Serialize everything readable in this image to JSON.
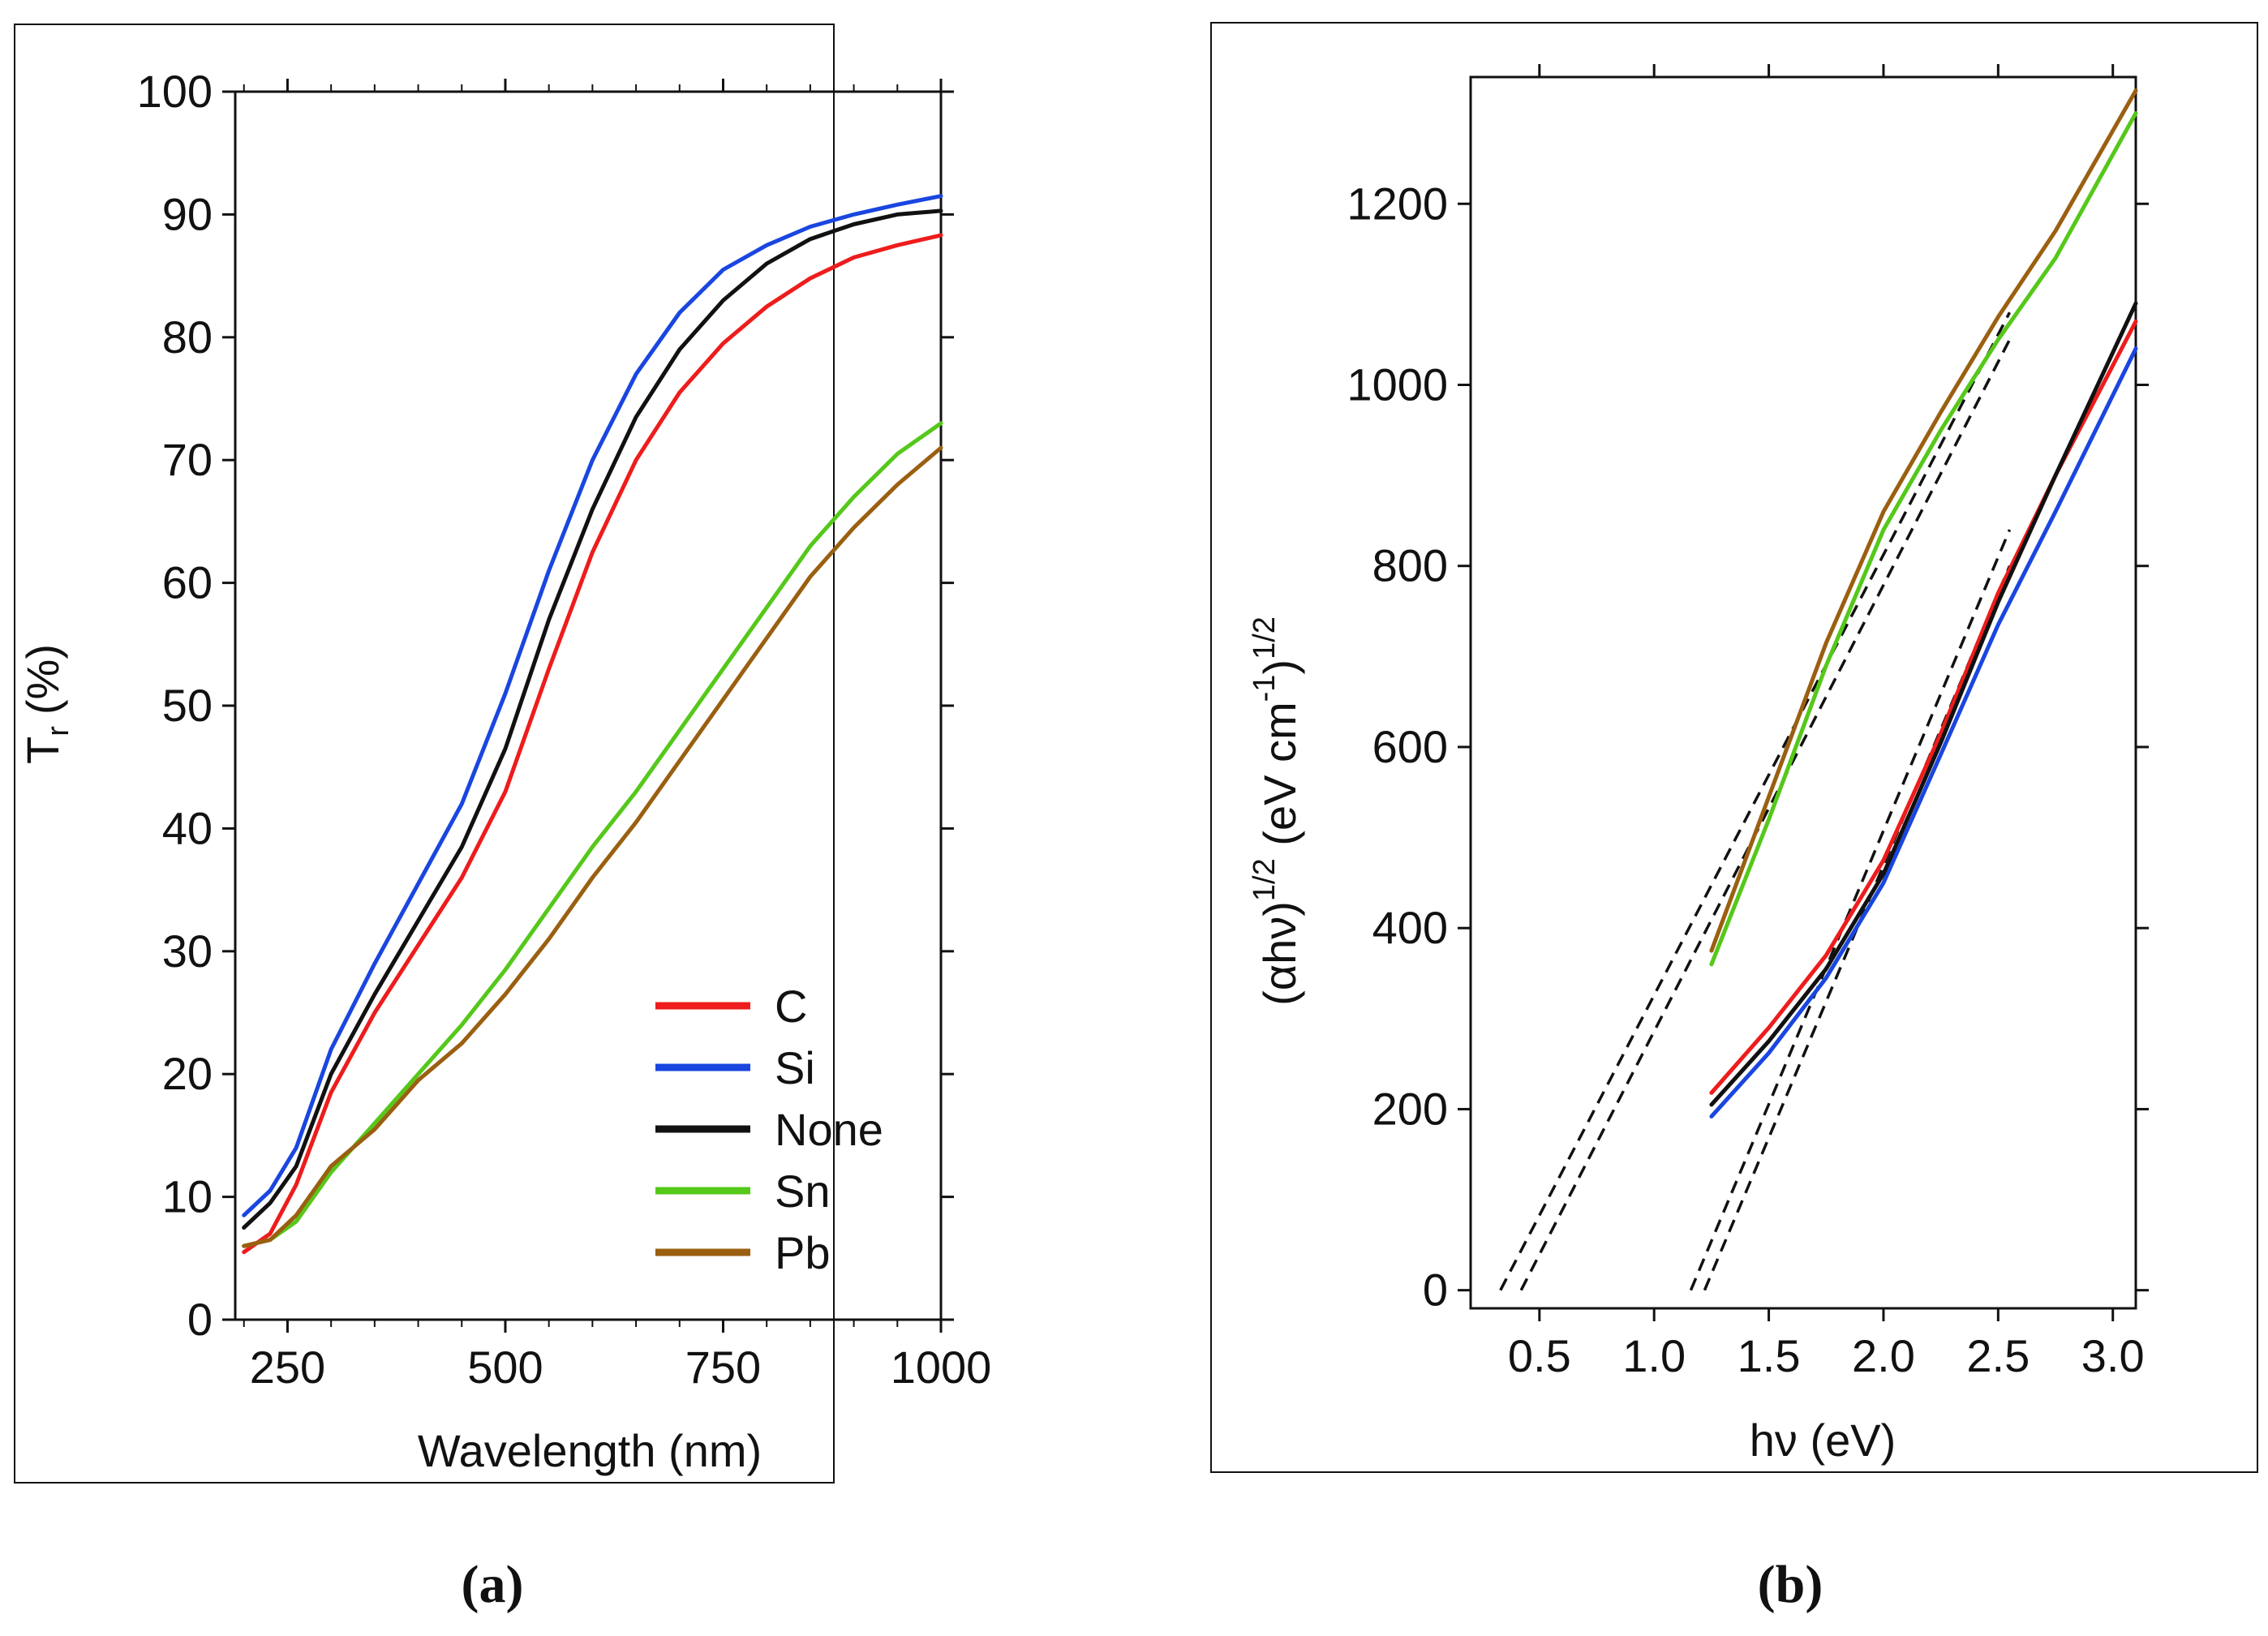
{
  "panels": [
    {
      "label": "(a)"
    },
    {
      "label": "(b)"
    }
  ],
  "chart_data": [
    {
      "type": "line",
      "xlabel": "Wavelength (nm)",
      "ylabel_main": "T",
      "ylabel_sub": "r",
      "ylabel_unit": "(%)",
      "xlim": [
        190,
        1000
      ],
      "ylim": [
        0,
        100
      ],
      "xticks": [
        250,
        500,
        750,
        1000
      ],
      "yticks": [
        0,
        10,
        20,
        30,
        40,
        50,
        60,
        70,
        80,
        90,
        100
      ],
      "grid": false,
      "legend_position": "bottom-right",
      "series": [
        {
          "name": "C",
          "color": "#ee1c1c",
          "x": [
            200,
            230,
            260,
            300,
            350,
            400,
            450,
            500,
            550,
            600,
            650,
            700,
            750,
            800,
            850,
            900,
            950,
            1000
          ],
          "y": [
            5.5,
            7,
            11,
            18.5,
            25,
            30.5,
            36,
            43,
            53,
            62.5,
            70,
            75.5,
            79.5,
            82.5,
            84.8,
            86.5,
            87.5,
            88.3
          ]
        },
        {
          "name": "Si",
          "color": "#1a46e0",
          "x": [
            200,
            230,
            260,
            300,
            350,
            400,
            450,
            500,
            550,
            600,
            650,
            700,
            750,
            800,
            850,
            900,
            950,
            1000
          ],
          "y": [
            8.5,
            10.5,
            14,
            22,
            29,
            35.5,
            42,
            51,
            61,
            70,
            77,
            82,
            85.5,
            87.5,
            89,
            90,
            90.8,
            91.5
          ]
        },
        {
          "name": "None",
          "color": "#111111",
          "x": [
            200,
            230,
            260,
            300,
            350,
            400,
            450,
            500,
            550,
            600,
            650,
            700,
            750,
            800,
            850,
            900,
            950,
            1000
          ],
          "y": [
            7.5,
            9.5,
            12.5,
            20,
            26.5,
            32.5,
            38.5,
            46.5,
            57,
            66,
            73.5,
            79,
            83,
            86,
            88,
            89.2,
            90,
            90.3
          ]
        },
        {
          "name": "Sn",
          "color": "#55c81a",
          "x": [
            200,
            230,
            260,
            300,
            350,
            400,
            450,
            500,
            550,
            600,
            650,
            700,
            750,
            800,
            850,
            900,
            950,
            1000
          ],
          "y": [
            6,
            6.5,
            8,
            12,
            16,
            20,
            24,
            28.5,
            33.5,
            38.5,
            43,
            48,
            53,
            58,
            63,
            67,
            70.5,
            73
          ]
        },
        {
          "name": "Pb",
          "color": "#9a5f10",
          "x": [
            200,
            230,
            260,
            300,
            350,
            400,
            450,
            500,
            550,
            600,
            650,
            700,
            750,
            800,
            850,
            900,
            950,
            1000
          ],
          "y": [
            6,
            6.5,
            8.5,
            12.5,
            15.5,
            19.5,
            22.5,
            26.5,
            31,
            36,
            40.5,
            45.5,
            50.5,
            55.5,
            60.5,
            64.5,
            68,
            71
          ]
        }
      ]
    },
    {
      "type": "line",
      "xlabel": "hν (eV)",
      "ylabel_a": "(αhν)",
      "ylabel_sup": "1/2",
      "ylabel_b": " (eV cm",
      "ylabel_sup2": "-1",
      "ylabel_c": ")",
      "ylabel_sup3": "1/2",
      "xlim": [
        0.2,
        3.1
      ],
      "ylim": [
        -20,
        1340
      ],
      "xticks": [
        0.5,
        1.0,
        1.5,
        2.0,
        2.5,
        3.0
      ],
      "xtick_labels": [
        "0.5",
        "1.0",
        "1.5",
        "2.0",
        "2.5",
        "3.0"
      ],
      "yticks": [
        0,
        200,
        400,
        600,
        800,
        1000,
        1200
      ],
      "grid": false,
      "series": [
        {
          "name": "C",
          "color": "#ee1c1c",
          "x": [
            1.25,
            1.5,
            1.75,
            2.0,
            2.25,
            2.5,
            2.75,
            3.1
          ],
          "y": [
            218,
            290,
            370,
            475,
            615,
            770,
            900,
            1070
          ]
        },
        {
          "name": "Si",
          "color": "#1a46e0",
          "x": [
            1.25,
            1.5,
            1.75,
            2.0,
            2.25,
            2.5,
            2.75,
            3.1
          ],
          "y": [
            192,
            262,
            345,
            450,
            592,
            735,
            860,
            1040
          ]
        },
        {
          "name": "None",
          "color": "#111111",
          "x": [
            1.25,
            1.5,
            1.75,
            2.0,
            2.25,
            2.5,
            2.75,
            3.1
          ],
          "y": [
            205,
            275,
            355,
            460,
            605,
            760,
            900,
            1090
          ]
        },
        {
          "name": "Sn",
          "color": "#55c81a",
          "x": [
            1.25,
            1.5,
            1.75,
            2.0,
            2.25,
            2.5,
            2.75,
            3.1
          ],
          "y": [
            360,
            520,
            690,
            840,
            950,
            1050,
            1140,
            1300
          ]
        },
        {
          "name": "Pb",
          "color": "#9a5f10",
          "x": [
            1.25,
            1.5,
            1.75,
            2.0,
            2.25,
            2.5,
            2.75,
            3.1
          ],
          "y": [
            375,
            545,
            715,
            860,
            970,
            1075,
            1170,
            1325
          ]
        }
      ],
      "fit_lines": [
        {
          "x": [
            0.33,
            2.55
          ],
          "y": [
            0,
            1080
          ]
        },
        {
          "x": [
            0.42,
            2.55
          ],
          "y": [
            0,
            1050
          ]
        },
        {
          "x": [
            1.16,
            2.55
          ],
          "y": [
            0,
            840
          ]
        },
        {
          "x": [
            1.22,
            2.55
          ],
          "y": [
            0,
            800
          ]
        }
      ]
    }
  ]
}
